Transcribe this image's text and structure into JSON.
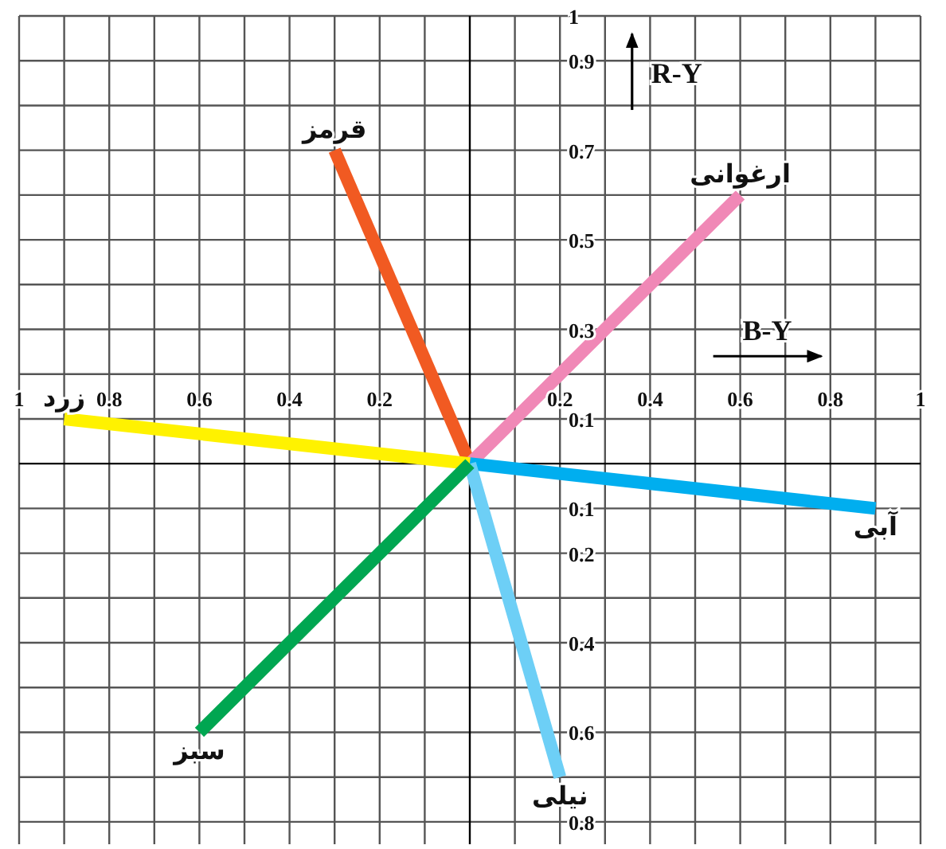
{
  "chart_data": {
    "type": "line",
    "xlabel": "B-Y",
    "ylabel": "R-Y",
    "grid": true,
    "xlim": [
      -1,
      1
    ],
    "ylim": [
      -0.85,
      1
    ],
    "xticks": [
      {
        "value": -1,
        "label": "1"
      },
      {
        "value": -0.9,
        "label": null
      },
      {
        "value": -0.8,
        "label": "0.8"
      },
      {
        "value": -0.7,
        "label": null
      },
      {
        "value": -0.6,
        "label": "0.6"
      },
      {
        "value": -0.5,
        "label": null
      },
      {
        "value": -0.4,
        "label": "0.4"
      },
      {
        "value": -0.3,
        "label": null
      },
      {
        "value": -0.2,
        "label": "0.2"
      },
      {
        "value": -0.1,
        "label": null
      },
      {
        "value": 0.1,
        "label": null
      },
      0.2,
      {
        "value": 0.3,
        "label": null
      },
      0.4,
      {
        "value": 0.5,
        "label": null
      },
      0.6,
      {
        "value": 0.7,
        "label": null
      },
      0.8,
      {
        "value": 0.9,
        "label": null
      },
      1
    ],
    "yticks": [
      {
        "value": -0.8,
        "label": "0.8"
      },
      {
        "value": -0.7,
        "label": null
      },
      {
        "value": -0.6,
        "label": "0.6"
      },
      {
        "value": -0.5,
        "label": null
      },
      {
        "value": -0.4,
        "label": "0.4"
      },
      {
        "value": -0.3,
        "label": null
      },
      {
        "value": -0.2,
        "label": "0.2"
      },
      {
        "value": -0.1,
        "label": "0.1"
      },
      0.1,
      {
        "value": 0.2,
        "label": null
      },
      0.3,
      {
        "value": 0.4,
        "label": null
      },
      0.5,
      {
        "value": 0.6,
        "label": null
      },
      0.7,
      {
        "value": 0.8,
        "label": null
      },
      0.9,
      1
    ],
    "series": [
      {
        "name": "قرمز",
        "color": "#f15a22",
        "x": [
          0,
          -0.3
        ],
        "values": [
          0,
          0.7
        ]
      },
      {
        "name": "ارغوانی",
        "color": "#f088b6",
        "x": [
          0,
          0.6
        ],
        "values": [
          0,
          0.6
        ]
      },
      {
        "name": "زرد",
        "color": "#fff200",
        "x": [
          0,
          -0.9
        ],
        "values": [
          0,
          0.1
        ]
      },
      {
        "name": "آبی",
        "color": "#00aeef",
        "x": [
          0,
          0.9
        ],
        "values": [
          0,
          -0.1
        ]
      },
      {
        "name": "نیلی",
        "color": "#6dcff6",
        "x": [
          0,
          0.2
        ],
        "values": [
          0,
          -0.7
        ]
      },
      {
        "name": "سبز",
        "color": "#00a651",
        "x": [
          0,
          -0.6
        ],
        "values": [
          0,
          -0.6
        ]
      }
    ]
  }
}
